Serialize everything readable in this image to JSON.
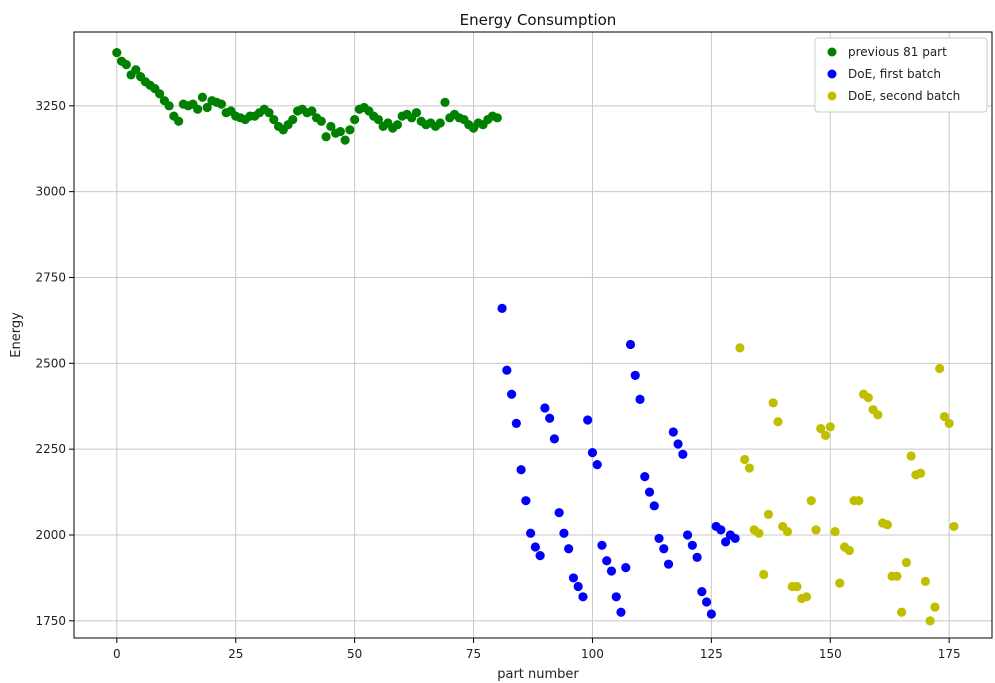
{
  "chart_data": {
    "type": "scatter",
    "title": "Energy Consumption",
    "xlabel": "part number",
    "ylabel": "Energy",
    "xlim": [
      -9,
      184
    ],
    "ylim": [
      1700,
      3465
    ],
    "xticks": [
      0,
      25,
      50,
      75,
      100,
      125,
      150,
      175
    ],
    "yticks": [
      1750,
      2000,
      2250,
      2500,
      2750,
      3000,
      3250
    ],
    "grid": true,
    "legend_position": "top-right",
    "series": [
      {
        "name": "previous 81 part",
        "color": "#008000",
        "points": [
          [
            0,
            3405
          ],
          [
            1,
            3380
          ],
          [
            2,
            3370
          ],
          [
            3,
            3340
          ],
          [
            4,
            3355
          ],
          [
            5,
            3335
          ],
          [
            6,
            3320
          ],
          [
            7,
            3310
          ],
          [
            8,
            3300
          ],
          [
            9,
            3285
          ],
          [
            10,
            3265
          ],
          [
            11,
            3250
          ],
          [
            12,
            3220
          ],
          [
            13,
            3205
          ],
          [
            14,
            3255
          ],
          [
            15,
            3250
          ],
          [
            16,
            3255
          ],
          [
            17,
            3240
          ],
          [
            18,
            3275
          ],
          [
            19,
            3245
          ],
          [
            20,
            3265
          ],
          [
            21,
            3260
          ],
          [
            22,
            3255
          ],
          [
            23,
            3230
          ],
          [
            24,
            3235
          ],
          [
            25,
            3220
          ],
          [
            26,
            3215
          ],
          [
            27,
            3210
          ],
          [
            28,
            3220
          ],
          [
            29,
            3220
          ],
          [
            30,
            3230
          ],
          [
            31,
            3240
          ],
          [
            32,
            3230
          ],
          [
            33,
            3210
          ],
          [
            34,
            3190
          ],
          [
            35,
            3180
          ],
          [
            36,
            3195
          ],
          [
            37,
            3210
          ],
          [
            38,
            3235
          ],
          [
            39,
            3240
          ],
          [
            40,
            3230
          ],
          [
            41,
            3235
          ],
          [
            42,
            3215
          ],
          [
            43,
            3205
          ],
          [
            44,
            3160
          ],
          [
            45,
            3190
          ],
          [
            46,
            3170
          ],
          [
            47,
            3175
          ],
          [
            48,
            3150
          ],
          [
            49,
            3180
          ],
          [
            50,
            3210
          ],
          [
            51,
            3240
          ],
          [
            52,
            3245
          ],
          [
            53,
            3235
          ],
          [
            54,
            3220
          ],
          [
            55,
            3210
          ],
          [
            56,
            3190
          ],
          [
            57,
            3200
          ],
          [
            58,
            3185
          ],
          [
            59,
            3195
          ],
          [
            60,
            3220
          ],
          [
            61,
            3225
          ],
          [
            62,
            3215
          ],
          [
            63,
            3230
          ],
          [
            64,
            3205
          ],
          [
            65,
            3195
          ],
          [
            66,
            3200
          ],
          [
            67,
            3190
          ],
          [
            68,
            3200
          ],
          [
            69,
            3260
          ],
          [
            70,
            3215
          ],
          [
            71,
            3225
          ],
          [
            72,
            3215
          ],
          [
            73,
            3210
          ],
          [
            74,
            3195
          ],
          [
            75,
            3185
          ],
          [
            76,
            3200
          ],
          [
            77,
            3195
          ],
          [
            78,
            3210
          ],
          [
            79,
            3220
          ],
          [
            80,
            3215
          ]
        ]
      },
      {
        "name": "DoE, first batch",
        "color": "#0000ff",
        "points": [
          [
            81,
            2660
          ],
          [
            82,
            2480
          ],
          [
            83,
            2410
          ],
          [
            84,
            2325
          ],
          [
            85,
            2190
          ],
          [
            86,
            2100
          ],
          [
            87,
            2005
          ],
          [
            88,
            1965
          ],
          [
            89,
            1940
          ],
          [
            90,
            2370
          ],
          [
            91,
            2340
          ],
          [
            92,
            2280
          ],
          [
            93,
            2065
          ],
          [
            94,
            2005
          ],
          [
            95,
            1960
          ],
          [
            96,
            1875
          ],
          [
            97,
            1850
          ],
          [
            98,
            1820
          ],
          [
            99,
            2335
          ],
          [
            100,
            2240
          ],
          [
            101,
            2205
          ],
          [
            102,
            1970
          ],
          [
            103,
            1925
          ],
          [
            104,
            1895
          ],
          [
            105,
            1820
          ],
          [
            106,
            1775
          ],
          [
            107,
            1905
          ],
          [
            108,
            2555
          ],
          [
            109,
            2465
          ],
          [
            110,
            2395
          ],
          [
            111,
            2170
          ],
          [
            112,
            2125
          ],
          [
            113,
            2085
          ],
          [
            114,
            1990
          ],
          [
            115,
            1960
          ],
          [
            116,
            1915
          ],
          [
            117,
            2300
          ],
          [
            118,
            2265
          ],
          [
            119,
            2235
          ],
          [
            120,
            2000
          ],
          [
            121,
            1970
          ],
          [
            122,
            1935
          ],
          [
            123,
            1835
          ],
          [
            124,
            1805
          ],
          [
            125,
            1770
          ],
          [
            126,
            2025
          ],
          [
            127,
            2015
          ],
          [
            128,
            1980
          ],
          [
            129,
            2000
          ],
          [
            130,
            1990
          ]
        ]
      },
      {
        "name": "DoE, second batch",
        "color": "#bfbf00",
        "points": [
          [
            131,
            2545
          ],
          [
            132,
            2220
          ],
          [
            133,
            2195
          ],
          [
            134,
            2015
          ],
          [
            135,
            2005
          ],
          [
            136,
            1885
          ],
          [
            137,
            2060
          ],
          [
            138,
            2385
          ],
          [
            139,
            2330
          ],
          [
            140,
            2025
          ],
          [
            141,
            2010
          ],
          [
            142,
            1850
          ],
          [
            143,
            1850
          ],
          [
            144,
            1815
          ],
          [
            145,
            1820
          ],
          [
            146,
            2100
          ],
          [
            147,
            2015
          ],
          [
            148,
            2310
          ],
          [
            149,
            2290
          ],
          [
            150,
            2315
          ],
          [
            151,
            2010
          ],
          [
            152,
            1860
          ],
          [
            153,
            1965
          ],
          [
            154,
            1955
          ],
          [
            155,
            2100
          ],
          [
            156,
            2100
          ],
          [
            157,
            2410
          ],
          [
            158,
            2400
          ],
          [
            159,
            2365
          ],
          [
            160,
            2350
          ],
          [
            161,
            2035
          ],
          [
            162,
            2030
          ],
          [
            163,
            1880
          ],
          [
            164,
            1880
          ],
          [
            165,
            1775
          ],
          [
            166,
            1920
          ],
          [
            167,
            2230
          ],
          [
            168,
            2175
          ],
          [
            169,
            2180
          ],
          [
            170,
            1865
          ],
          [
            171,
            1750
          ],
          [
            172,
            1790
          ],
          [
            173,
            2485
          ],
          [
            174,
            2345
          ],
          [
            175,
            2325
          ],
          [
            176,
            2025
          ]
        ]
      }
    ]
  }
}
